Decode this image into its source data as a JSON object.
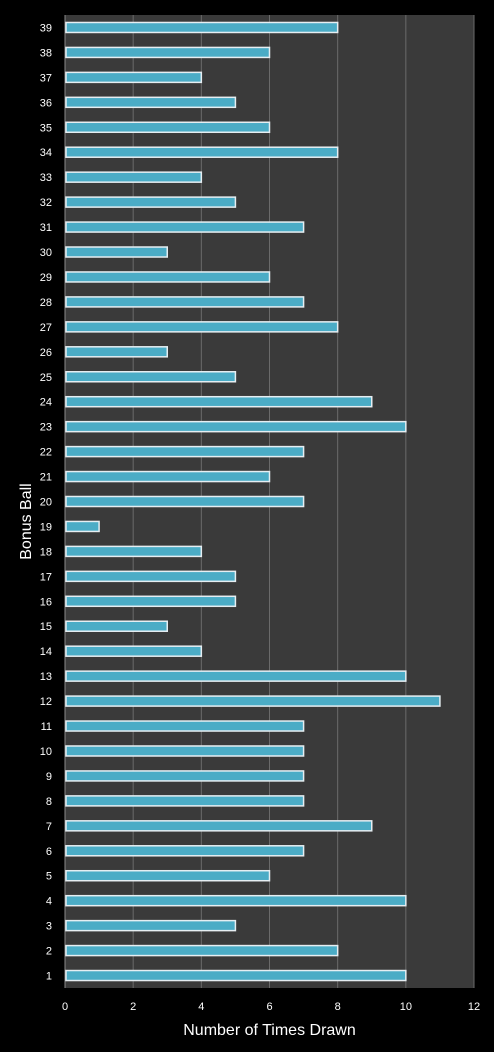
{
  "chart_data": {
    "type": "bar",
    "orientation": "horizontal",
    "categories": [
      "1",
      "2",
      "3",
      "4",
      "5",
      "6",
      "7",
      "8",
      "9",
      "10",
      "11",
      "12",
      "13",
      "14",
      "15",
      "16",
      "17",
      "18",
      "19",
      "20",
      "21",
      "22",
      "23",
      "24",
      "25",
      "26",
      "27",
      "28",
      "29",
      "30",
      "31",
      "32",
      "33",
      "34",
      "35",
      "36",
      "37",
      "38",
      "39"
    ],
    "values": [
      10,
      8,
      5,
      10,
      6,
      7,
      9,
      7,
      7,
      7,
      7,
      11,
      10,
      4,
      3,
      5,
      5,
      4,
      1,
      7,
      6,
      7,
      10,
      9,
      5,
      3,
      8,
      7,
      6,
      3,
      7,
      5,
      4,
      8,
      6,
      5,
      4,
      6,
      8
    ],
    "title": "",
    "xlabel": "Number of Times Drawn",
    "ylabel": "Bonus Ball",
    "xlim": [
      0,
      12
    ],
    "xticks": [
      "0",
      "2",
      "4",
      "6",
      "8",
      "10",
      "12"
    ],
    "grid": true,
    "legend": "none",
    "colors": {
      "background": "#000000",
      "plot_area": "#3a3a3a",
      "gridline": "#6a6a6a",
      "bar_fill": "#4bacc6",
      "bar_border": "#e6eef2",
      "text": "#ffffff"
    }
  }
}
